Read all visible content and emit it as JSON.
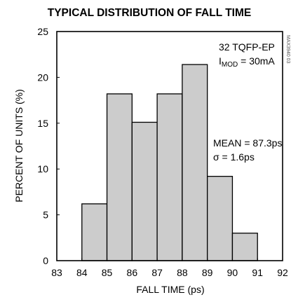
{
  "chart_data": {
    "type": "bar",
    "title": "TYPICAL DISTRIBUTION OF FALL TIME",
    "xlabel": "FALL TIME (ps)",
    "ylabel": "PERCENT OF UNITS (%)",
    "xlim": [
      83,
      92
    ],
    "ylim": [
      0,
      25
    ],
    "xticks": [
      "83",
      "84",
      "85",
      "86",
      "87",
      "88",
      "89",
      "90",
      "91",
      "92"
    ],
    "yticks": [
      "0",
      "5",
      "10",
      "15",
      "20",
      "25"
    ],
    "grid": false,
    "bins": [
      {
        "from": 84,
        "to": 85,
        "value": 6.2
      },
      {
        "from": 85,
        "to": 86,
        "value": 18.2
      },
      {
        "from": 86,
        "to": 87,
        "value": 15.1
      },
      {
        "from": 87,
        "to": 88,
        "value": 18.2
      },
      {
        "from": 88,
        "to": 89,
        "value": 21.4
      },
      {
        "from": 89,
        "to": 90,
        "value": 9.2
      },
      {
        "from": 90,
        "to": 91,
        "value": 3.0
      }
    ],
    "annotations": {
      "package": "32 TQFP-EP",
      "imod_main": "I",
      "imod_sub": "MOD",
      "imod_value": " = 30mA",
      "mean": "MEAN = 87.3ps",
      "sigma_symbol": "σ",
      "sigma_value": " = 1.6ps"
    },
    "watermark": "MAX3940 03"
  }
}
